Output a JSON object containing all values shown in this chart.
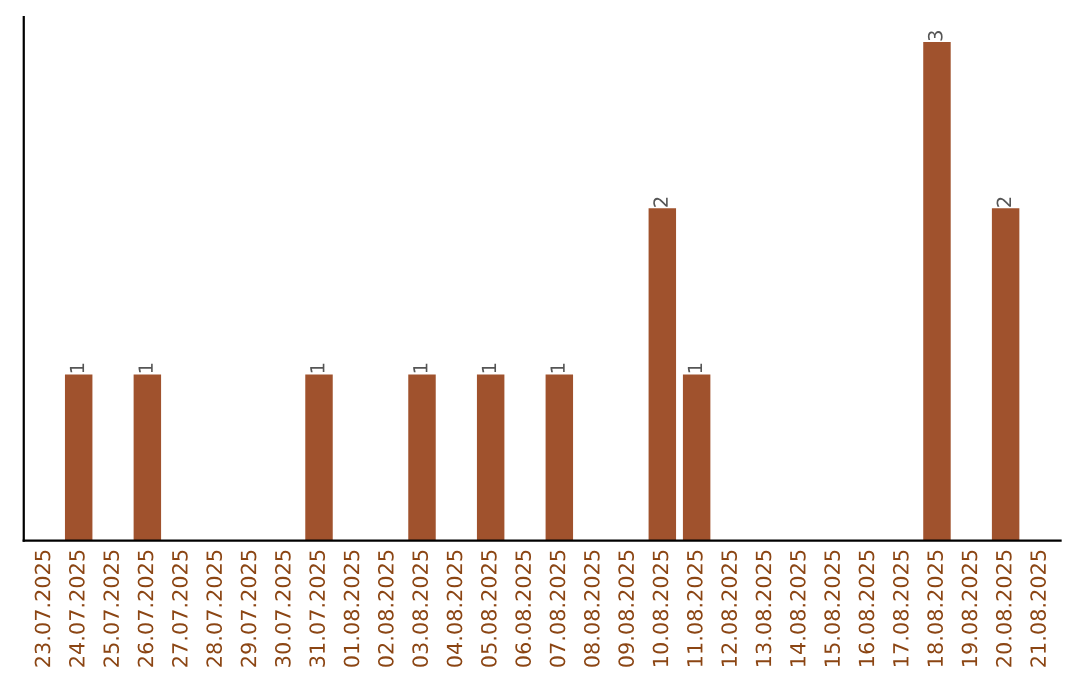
{
  "chart_data": {
    "type": "bar",
    "categories": [
      "23.07.2025",
      "24.07.2025",
      "25.07.2025",
      "26.07.2025",
      "27.07.2025",
      "28.07.2025",
      "29.07.2025",
      "30.07.2025",
      "31.07.2025",
      "01.08.2025",
      "02.08.2025",
      "03.08.2025",
      "04.08.2025",
      "05.08.2025",
      "06.08.2025",
      "07.08.2025",
      "08.08.2025",
      "09.08.2025",
      "10.08.2025",
      "11.08.2025",
      "12.08.2025",
      "13.08.2025",
      "14.08.2025",
      "15.08.2025",
      "16.08.2025",
      "17.08.2025",
      "18.08.2025",
      "19.08.2025",
      "20.08.2025",
      "21.08.2025"
    ],
    "values": [
      0,
      1,
      0,
      1,
      0,
      0,
      0,
      0,
      1,
      0,
      0,
      1,
      0,
      1,
      0,
      1,
      0,
      0,
      2,
      1,
      0,
      0,
      0,
      0,
      0,
      0,
      3,
      0,
      2,
      0
    ],
    "value_labels": [
      null,
      "1",
      null,
      "1",
      null,
      null,
      null,
      null,
      "1",
      null,
      null,
      "1",
      null,
      "1",
      null,
      "1",
      null,
      null,
      "2",
      "1",
      null,
      null,
      null,
      null,
      null,
      null,
      "3",
      null,
      "2",
      null
    ],
    "color": "#a0522d",
    "tick_labels": "x",
    "grid": false,
    "legend": false
  }
}
